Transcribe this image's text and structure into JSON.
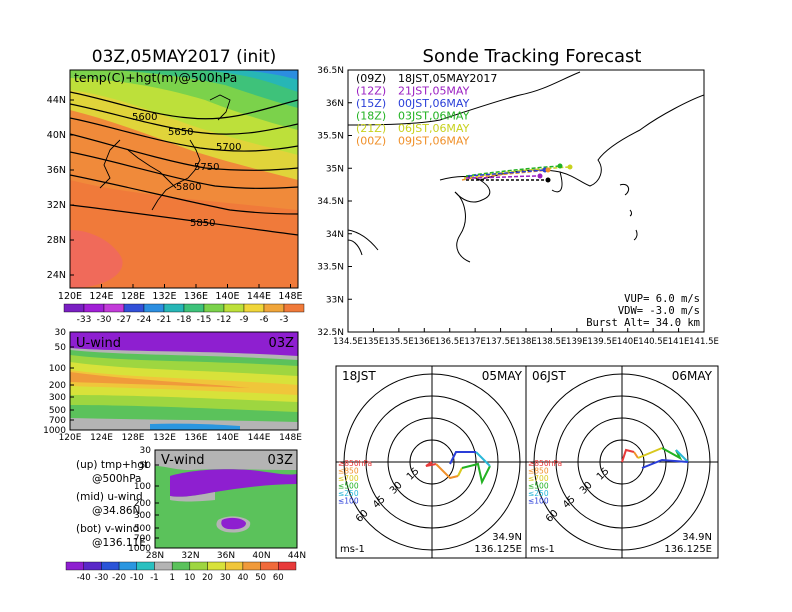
{
  "header": {
    "left_title": "03Z,05MAY2017 (init)",
    "right_title": "Sonde Tracking Forecast"
  },
  "map500": {
    "label": "temp(C)+hgt(m)@500hPa",
    "lat_labels": [
      "44N",
      "40N",
      "36N",
      "32N",
      "28N",
      "24N"
    ],
    "lon_labels": [
      "120E",
      "124E",
      "128E",
      "132E",
      "136E",
      "140E",
      "144E",
      "148E"
    ],
    "contour_labels": [
      "5600",
      "5650",
      "5700",
      "5750",
      "5800",
      "5850"
    ],
    "colorbar_labels": [
      "-33",
      "-30",
      "-27",
      "-24",
      "-21",
      "-18",
      "-15",
      "-12",
      "-9",
      "-6",
      "-3"
    ],
    "colorbar_colors": [
      "#7a1fc2",
      "#a11fd6",
      "#c23bd9",
      "#3250d8",
      "#2c8ee0",
      "#27b6b6",
      "#3ec27a",
      "#7bd24b",
      "#bde03a",
      "#f0d63a",
      "#f0a53a",
      "#f07a3a"
    ]
  },
  "uwind": {
    "label": "U-wind",
    "time": "03Z",
    "p_labels": [
      "30",
      "50",
      "100",
      "200",
      "300",
      "500",
      "700",
      "1000"
    ],
    "lon_labels": [
      "120E",
      "124E",
      "128E",
      "132E",
      "136E",
      "140E",
      "144E",
      "148E"
    ]
  },
  "vwind": {
    "label": "V-wind",
    "time": "03Z",
    "p_labels": [
      "30",
      "50",
      "100",
      "200",
      "300",
      "500",
      "700",
      "1000"
    ],
    "lat_labels": [
      "28N",
      "32N",
      "36N",
      "40N",
      "44N"
    ]
  },
  "legend_text": {
    "up1": "(up) tmp+hgt",
    "up2": "@500hPa",
    "mid1": "(mid) u-wind",
    "mid2": "@34.86N",
    "bot1": "(bot) v-wind",
    "bot2": "@136.11E"
  },
  "wind_colorbar": {
    "labels": [
      "-40",
      "-30",
      "-20",
      "-10",
      "-1",
      "1",
      "10",
      "20",
      "30",
      "40",
      "50",
      "60"
    ],
    "colors": [
      "#8e1fd0",
      "#5a28c8",
      "#2a54d8",
      "#2a96e0",
      "#2ac0c0",
      "#b4b4b4",
      "#5bc25b",
      "#9ed640",
      "#d8e23a",
      "#f0c63a",
      "#f09a3a",
      "#f06a3a",
      "#e83a3a"
    ]
  },
  "tracking": {
    "lat_labels": [
      "36.5N",
      "36N",
      "35.5N",
      "35N",
      "34.5N",
      "34N",
      "33.5N",
      "33N",
      "32.5N"
    ],
    "lon_labels": [
      "134.5E",
      "135E",
      "135.5E",
      "136E",
      "136.5E",
      "137E",
      "137.5E",
      "138E",
      "138.5E",
      "139E",
      "139.5E",
      "140E",
      "140.5E",
      "141E",
      "141.5E"
    ],
    "runs": [
      {
        "code": "(09Z)",
        "time": "18JST,05MAY2017",
        "color": "#000000"
      },
      {
        "code": "(12Z)",
        "time": "21JST,05MAY",
        "color": "#9b1fc2"
      },
      {
        "code": "(15Z)",
        "time": "00JST,06MAY",
        "color": "#2a3ed8"
      },
      {
        "code": "(18Z)",
        "time": "03JST,06MAY",
        "color": "#22b222"
      },
      {
        "code": "(21Z)",
        "time": "06JST,06MAY",
        "color": "#c8d21e"
      },
      {
        "code": "(00Z)",
        "time": "09JST,06MAY",
        "color": "#f0902a"
      }
    ],
    "vup": "VUP=  6.0 m/s",
    "vdw": "VDW= -3.0 m/s",
    "burst": "Burst Alt= 34.0 km"
  },
  "hodographs": [
    {
      "jst": "18JST",
      "date": "05MAY",
      "lat": "34.9N",
      "lon": "136.125E",
      "unit": "ms-1",
      "rings": [
        "15",
        "30",
        "45",
        "60"
      ]
    },
    {
      "jst": "06JST",
      "date": "06MAY",
      "lat": "34.9N",
      "lon": "136.125E",
      "unit": "ms-1",
      "rings": [
        "15",
        "30",
        "45",
        "60"
      ]
    }
  ],
  "hodo_legend": [
    {
      "label": "≥850hPa",
      "color": "#e83a3a"
    },
    {
      "label": "≤850",
      "color": "#f0902a"
    },
    {
      "label": "≤700",
      "color": "#d8c81e"
    },
    {
      "label": "≤500",
      "color": "#22b222"
    },
    {
      "label": "≤250",
      "color": "#2ab8d8"
    },
    {
      "label": "≤100",
      "color": "#2a3ed8"
    }
  ]
}
